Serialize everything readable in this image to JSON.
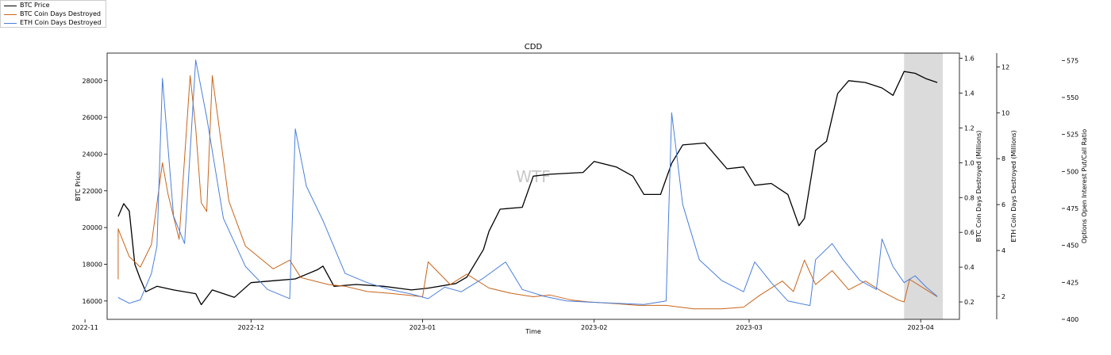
{
  "chart_data": {
    "type": "line",
    "title": "CDD",
    "xlabel": "Time",
    "watermark": "WTF",
    "x_ticks": [
      "2022-11",
      "2022-12",
      "2023-01",
      "2023-02",
      "2023-03",
      "2023-04"
    ],
    "x_range": [
      "2022-11-05",
      "2023-04-08"
    ],
    "shaded_region": [
      "2023-03-29",
      "2023-04-05"
    ],
    "legend_position": "top-left outside",
    "grid": false,
    "colors": {
      "btc_price": "#000000",
      "btc_cdd": "#c8651b",
      "eth_cdd": "#4a7fdc",
      "shade": "#d9d9d9"
    },
    "axes": {
      "left": {
        "label": "BTC Price",
        "range": [
          15000,
          29500
        ],
        "ticks": [
          16000,
          18000,
          20000,
          22000,
          24000,
          26000,
          28000
        ]
      },
      "right1": {
        "label": "BTC Coin Days Destroyed (Millions)",
        "range": [
          0.1,
          1.63
        ],
        "ticks": [
          "0.2",
          "0.4",
          "0.6",
          "0.8",
          "1.0",
          "1.2",
          "1.4",
          "1.6"
        ]
      },
      "right2": {
        "label": "ETH Coin Days Destroyed (Millions)",
        "range": [
          1.0,
          12.6
        ],
        "ticks": [
          "2",
          "4",
          "6",
          "8",
          "10",
          "12"
        ]
      },
      "right3": {
        "label": "Options Open Interest Put/Call Ratio",
        "range": [
          400,
          580
        ],
        "ticks": [
          "400",
          "425",
          "450",
          "475",
          "500",
          "525",
          "550",
          "575"
        ]
      }
    },
    "series": [
      {
        "name": "BTC Price",
        "axis": "left",
        "key": "btc_price",
        "points": [
          [
            "2022-11-07",
            20600
          ],
          [
            "2022-11-08",
            21300
          ],
          [
            "2022-11-09",
            20900
          ],
          [
            "2022-11-10",
            18000
          ],
          [
            "2022-11-11",
            17200
          ],
          [
            "2022-11-12",
            16500
          ],
          [
            "2022-11-14",
            16800
          ],
          [
            "2022-11-17",
            16600
          ],
          [
            "2022-11-21",
            16400
          ],
          [
            "2022-11-22",
            15800
          ],
          [
            "2022-11-24",
            16600
          ],
          [
            "2022-11-28",
            16200
          ],
          [
            "2022-12-01",
            17000
          ],
          [
            "2022-12-05",
            17100
          ],
          [
            "2022-12-09",
            17200
          ],
          [
            "2022-12-13",
            17700
          ],
          [
            "2022-12-14",
            17900
          ],
          [
            "2022-12-16",
            16800
          ],
          [
            "2022-12-20",
            16900
          ],
          [
            "2022-12-25",
            16800
          ],
          [
            "2022-12-30",
            16600
          ],
          [
            "2023-01-02",
            16700
          ],
          [
            "2023-01-07",
            16950
          ],
          [
            "2023-01-09",
            17300
          ],
          [
            "2023-01-12",
            18800
          ],
          [
            "2023-01-13",
            19800
          ],
          [
            "2023-01-15",
            21000
          ],
          [
            "2023-01-19",
            21100
          ],
          [
            "2023-01-21",
            22800
          ],
          [
            "2023-01-24",
            22900
          ],
          [
            "2023-01-30",
            23000
          ],
          [
            "2023-02-01",
            23600
          ],
          [
            "2023-02-05",
            23300
          ],
          [
            "2023-02-08",
            22800
          ],
          [
            "2023-02-10",
            21800
          ],
          [
            "2023-02-13",
            21800
          ],
          [
            "2023-02-15",
            23500
          ],
          [
            "2023-02-17",
            24500
          ],
          [
            "2023-02-21",
            24600
          ],
          [
            "2023-02-25",
            23200
          ],
          [
            "2023-02-28",
            23300
          ],
          [
            "2023-03-02",
            22300
          ],
          [
            "2023-03-05",
            22400
          ],
          [
            "2023-03-08",
            21800
          ],
          [
            "2023-03-10",
            20100
          ],
          [
            "2023-03-11",
            20500
          ],
          [
            "2023-03-13",
            24200
          ],
          [
            "2023-03-15",
            24700
          ],
          [
            "2023-03-17",
            27300
          ],
          [
            "2023-03-19",
            28000
          ],
          [
            "2023-03-22",
            27900
          ],
          [
            "2023-03-25",
            27600
          ],
          [
            "2023-03-27",
            27200
          ],
          [
            "2023-03-29",
            28500
          ],
          [
            "2023-03-31",
            28400
          ],
          [
            "2023-04-02",
            28100
          ],
          [
            "2023-04-04",
            27900
          ]
        ]
      },
      {
        "name": "BTC Coin Days Destroyed",
        "axis": "right1",
        "key": "btc_cdd",
        "points": [
          [
            "2022-11-07",
            0.33
          ],
          [
            "2022-11-07",
            0.62
          ],
          [
            "2022-11-09",
            0.46
          ],
          [
            "2022-11-11",
            0.4
          ],
          [
            "2022-11-13",
            0.53
          ],
          [
            "2022-11-15",
            1.0
          ],
          [
            "2022-11-16",
            0.82
          ],
          [
            "2022-11-18",
            0.56
          ],
          [
            "2022-11-20",
            1.5
          ],
          [
            "2022-11-21",
            1.2
          ],
          [
            "2022-11-22",
            0.77
          ],
          [
            "2022-11-23",
            0.72
          ],
          [
            "2022-11-24",
            1.5
          ],
          [
            "2022-11-27",
            0.78
          ],
          [
            "2022-11-30",
            0.52
          ],
          [
            "2022-12-05",
            0.39
          ],
          [
            "2022-12-08",
            0.44
          ],
          [
            "2022-12-10",
            0.34
          ],
          [
            "2022-12-15",
            0.3
          ],
          [
            "2022-12-18",
            0.29
          ],
          [
            "2022-12-22",
            0.26
          ],
          [
            "2022-12-26",
            0.25
          ],
          [
            "2023-01-01",
            0.23
          ],
          [
            "2023-01-02",
            0.43
          ],
          [
            "2023-01-06",
            0.3
          ],
          [
            "2023-01-09",
            0.36
          ],
          [
            "2023-01-13",
            0.28
          ],
          [
            "2023-01-17",
            0.25
          ],
          [
            "2023-01-21",
            0.23
          ],
          [
            "2023-01-24",
            0.24
          ],
          [
            "2023-01-28",
            0.21
          ],
          [
            "2023-01-31",
            0.2
          ],
          [
            "2023-02-05",
            0.19
          ],
          [
            "2023-02-09",
            0.18
          ],
          [
            "2023-02-14",
            0.18
          ],
          [
            "2023-02-19",
            0.16
          ],
          [
            "2023-02-24",
            0.16
          ],
          [
            "2023-02-28",
            0.17
          ],
          [
            "2023-03-03",
            0.24
          ],
          [
            "2023-03-07",
            0.32
          ],
          [
            "2023-03-09",
            0.26
          ],
          [
            "2023-03-11",
            0.44
          ],
          [
            "2023-03-13",
            0.3
          ],
          [
            "2023-03-16",
            0.38
          ],
          [
            "2023-03-19",
            0.27
          ],
          [
            "2023-03-22",
            0.32
          ],
          [
            "2023-03-25",
            0.26
          ],
          [
            "2023-03-28",
            0.21
          ],
          [
            "2023-03-29",
            0.2
          ],
          [
            "2023-03-30",
            0.33
          ],
          [
            "2023-04-02",
            0.27
          ],
          [
            "2023-04-04",
            0.23
          ]
        ]
      },
      {
        "name": "ETH Coin Days Destroyed",
        "axis": "right2",
        "key": "eth_cdd",
        "points": [
          [
            "2022-11-07",
            1.95
          ],
          [
            "2022-11-09",
            1.7
          ],
          [
            "2022-11-11",
            1.85
          ],
          [
            "2022-11-13",
            3.0
          ],
          [
            "2022-11-14",
            4.2
          ],
          [
            "2022-11-15",
            11.5
          ],
          [
            "2022-11-17",
            5.5
          ],
          [
            "2022-11-19",
            4.3
          ],
          [
            "2022-11-21",
            12.3
          ],
          [
            "2022-11-23",
            9.8
          ],
          [
            "2022-11-26",
            5.4
          ],
          [
            "2022-11-30",
            3.3
          ],
          [
            "2022-12-04",
            2.3
          ],
          [
            "2022-12-08",
            1.9
          ],
          [
            "2022-12-09",
            9.3
          ],
          [
            "2022-12-11",
            6.8
          ],
          [
            "2022-12-14",
            5.3
          ],
          [
            "2022-12-18",
            3.0
          ],
          [
            "2022-12-22",
            2.6
          ],
          [
            "2022-12-26",
            2.3
          ],
          [
            "2022-12-30",
            2.1
          ],
          [
            "2023-01-02",
            1.9
          ],
          [
            "2023-01-05",
            2.4
          ],
          [
            "2023-01-08",
            2.2
          ],
          [
            "2023-01-12",
            2.8
          ],
          [
            "2023-01-16",
            3.5
          ],
          [
            "2023-01-19",
            2.3
          ],
          [
            "2023-01-23",
            2.0
          ],
          [
            "2023-01-27",
            1.8
          ],
          [
            "2023-01-31",
            1.75
          ],
          [
            "2023-02-05",
            1.7
          ],
          [
            "2023-02-10",
            1.65
          ],
          [
            "2023-02-14",
            1.8
          ],
          [
            "2023-02-15",
            10.0
          ],
          [
            "2023-02-17",
            6.0
          ],
          [
            "2023-02-20",
            3.6
          ],
          [
            "2023-02-24",
            2.7
          ],
          [
            "2023-02-28",
            2.2
          ],
          [
            "2023-03-02",
            3.5
          ],
          [
            "2023-03-05",
            2.6
          ],
          [
            "2023-03-08",
            1.8
          ],
          [
            "2023-03-12",
            1.6
          ],
          [
            "2023-03-13",
            3.6
          ],
          [
            "2023-03-16",
            4.3
          ],
          [
            "2023-03-18",
            3.6
          ],
          [
            "2023-03-21",
            2.7
          ],
          [
            "2023-03-24",
            2.3
          ],
          [
            "2023-03-25",
            4.5
          ],
          [
            "2023-03-27",
            3.3
          ],
          [
            "2023-03-29",
            2.6
          ],
          [
            "2023-03-31",
            2.9
          ],
          [
            "2023-04-02",
            2.4
          ],
          [
            "2023-04-04",
            2.0
          ]
        ]
      }
    ]
  }
}
